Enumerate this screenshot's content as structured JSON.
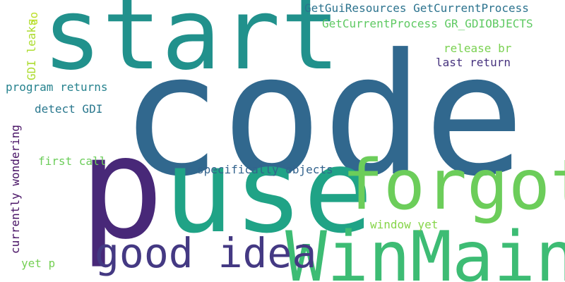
{
  "words": [
    {
      "id": "code",
      "text": "code",
      "color": "#31688e"
    },
    {
      "id": "start",
      "text": "start",
      "color": "#21918c"
    },
    {
      "id": "p",
      "text": "p",
      "color": "#482878"
    },
    {
      "id": "use",
      "text": "use",
      "color": "#20a386"
    },
    {
      "id": "forgot",
      "text": "forgot",
      "color": "#6ccd5a"
    },
    {
      "id": "winmain",
      "text": "WinMain",
      "color": "#3dbc74"
    },
    {
      "id": "good-idea",
      "text": "good idea",
      "color": "#443983"
    },
    {
      "id": "getguiresources",
      "text": "GetGuiResources GetCurrentProcess",
      "color": "#2c738e"
    },
    {
      "id": "getcurrentprocess",
      "text": "GetCurrentProcess GR_GDIOBJECTS",
      "color": "#5ec962"
    },
    {
      "id": "release-br",
      "text": "release br",
      "color": "#7ad151"
    },
    {
      "id": "last-return",
      "text": "last return",
      "color": "#46327e"
    },
    {
      "id": "program-returns",
      "text": "program returns",
      "color": "#26828e"
    },
    {
      "id": "detect-gdi",
      "text": "detect GDI",
      "color": "#2a788e"
    },
    {
      "id": "first-call",
      "text": "first call",
      "color": "#6ccd5a"
    },
    {
      "id": "specifically-objects",
      "text": "specifically objects",
      "color": "#33638d"
    },
    {
      "id": "window-yet",
      "text": "window yet",
      "color": "#86d549"
    },
    {
      "id": "yet-p",
      "text": "yet p",
      "color": "#75d054"
    },
    {
      "id": "gdi-leaks",
      "text": "GDI leaks",
      "color": "#addc30"
    },
    {
      "id": "currently-wondering",
      "text": "currently wondering",
      "color": "#471164"
    },
    {
      "id": "do",
      "text": "do",
      "color": "#bddf26"
    }
  ]
}
